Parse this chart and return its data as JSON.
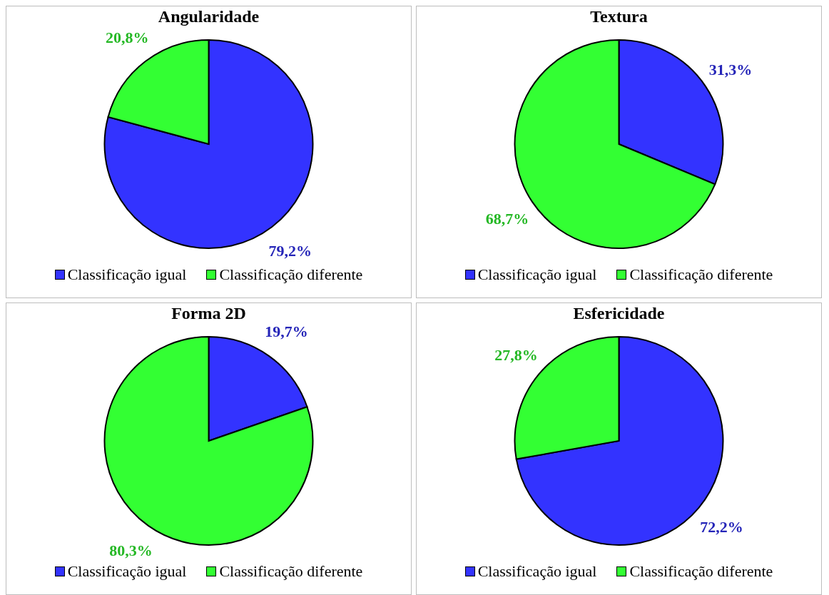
{
  "chart_data": [
    {
      "type": "pie",
      "title": "Angularidade",
      "categories": [
        "Classificação igual",
        "Classificação diferente"
      ],
      "values": [
        79.2,
        20.8
      ],
      "value_labels": [
        "79,2%",
        "20,8%"
      ],
      "colors": [
        "#3333ff",
        "#33ff33"
      ],
      "legend": "bottom"
    },
    {
      "type": "pie",
      "title": "Textura",
      "categories": [
        "Classificação igual",
        "Classificação diferente"
      ],
      "values": [
        31.3,
        68.7
      ],
      "value_labels": [
        "31,3%",
        "68,7%"
      ],
      "colors": [
        "#3333ff",
        "#33ff33"
      ],
      "legend": "bottom"
    },
    {
      "type": "pie",
      "title": "Forma 2D",
      "categories": [
        "Classificação igual",
        "Classificação diferente"
      ],
      "values": [
        19.7,
        80.3
      ],
      "value_labels": [
        "19,7%",
        "80,3%"
      ],
      "colors": [
        "#3333ff",
        "#33ff33"
      ],
      "legend": "bottom"
    },
    {
      "type": "pie",
      "title": "Esfericidade",
      "categories": [
        "Classificação igual",
        "Classificação diferente"
      ],
      "values": [
        72.2,
        27.8
      ],
      "value_labels": [
        "72,2%",
        "27,8%"
      ],
      "colors": [
        "#3333ff",
        "#33ff33"
      ],
      "legend": "bottom"
    }
  ]
}
